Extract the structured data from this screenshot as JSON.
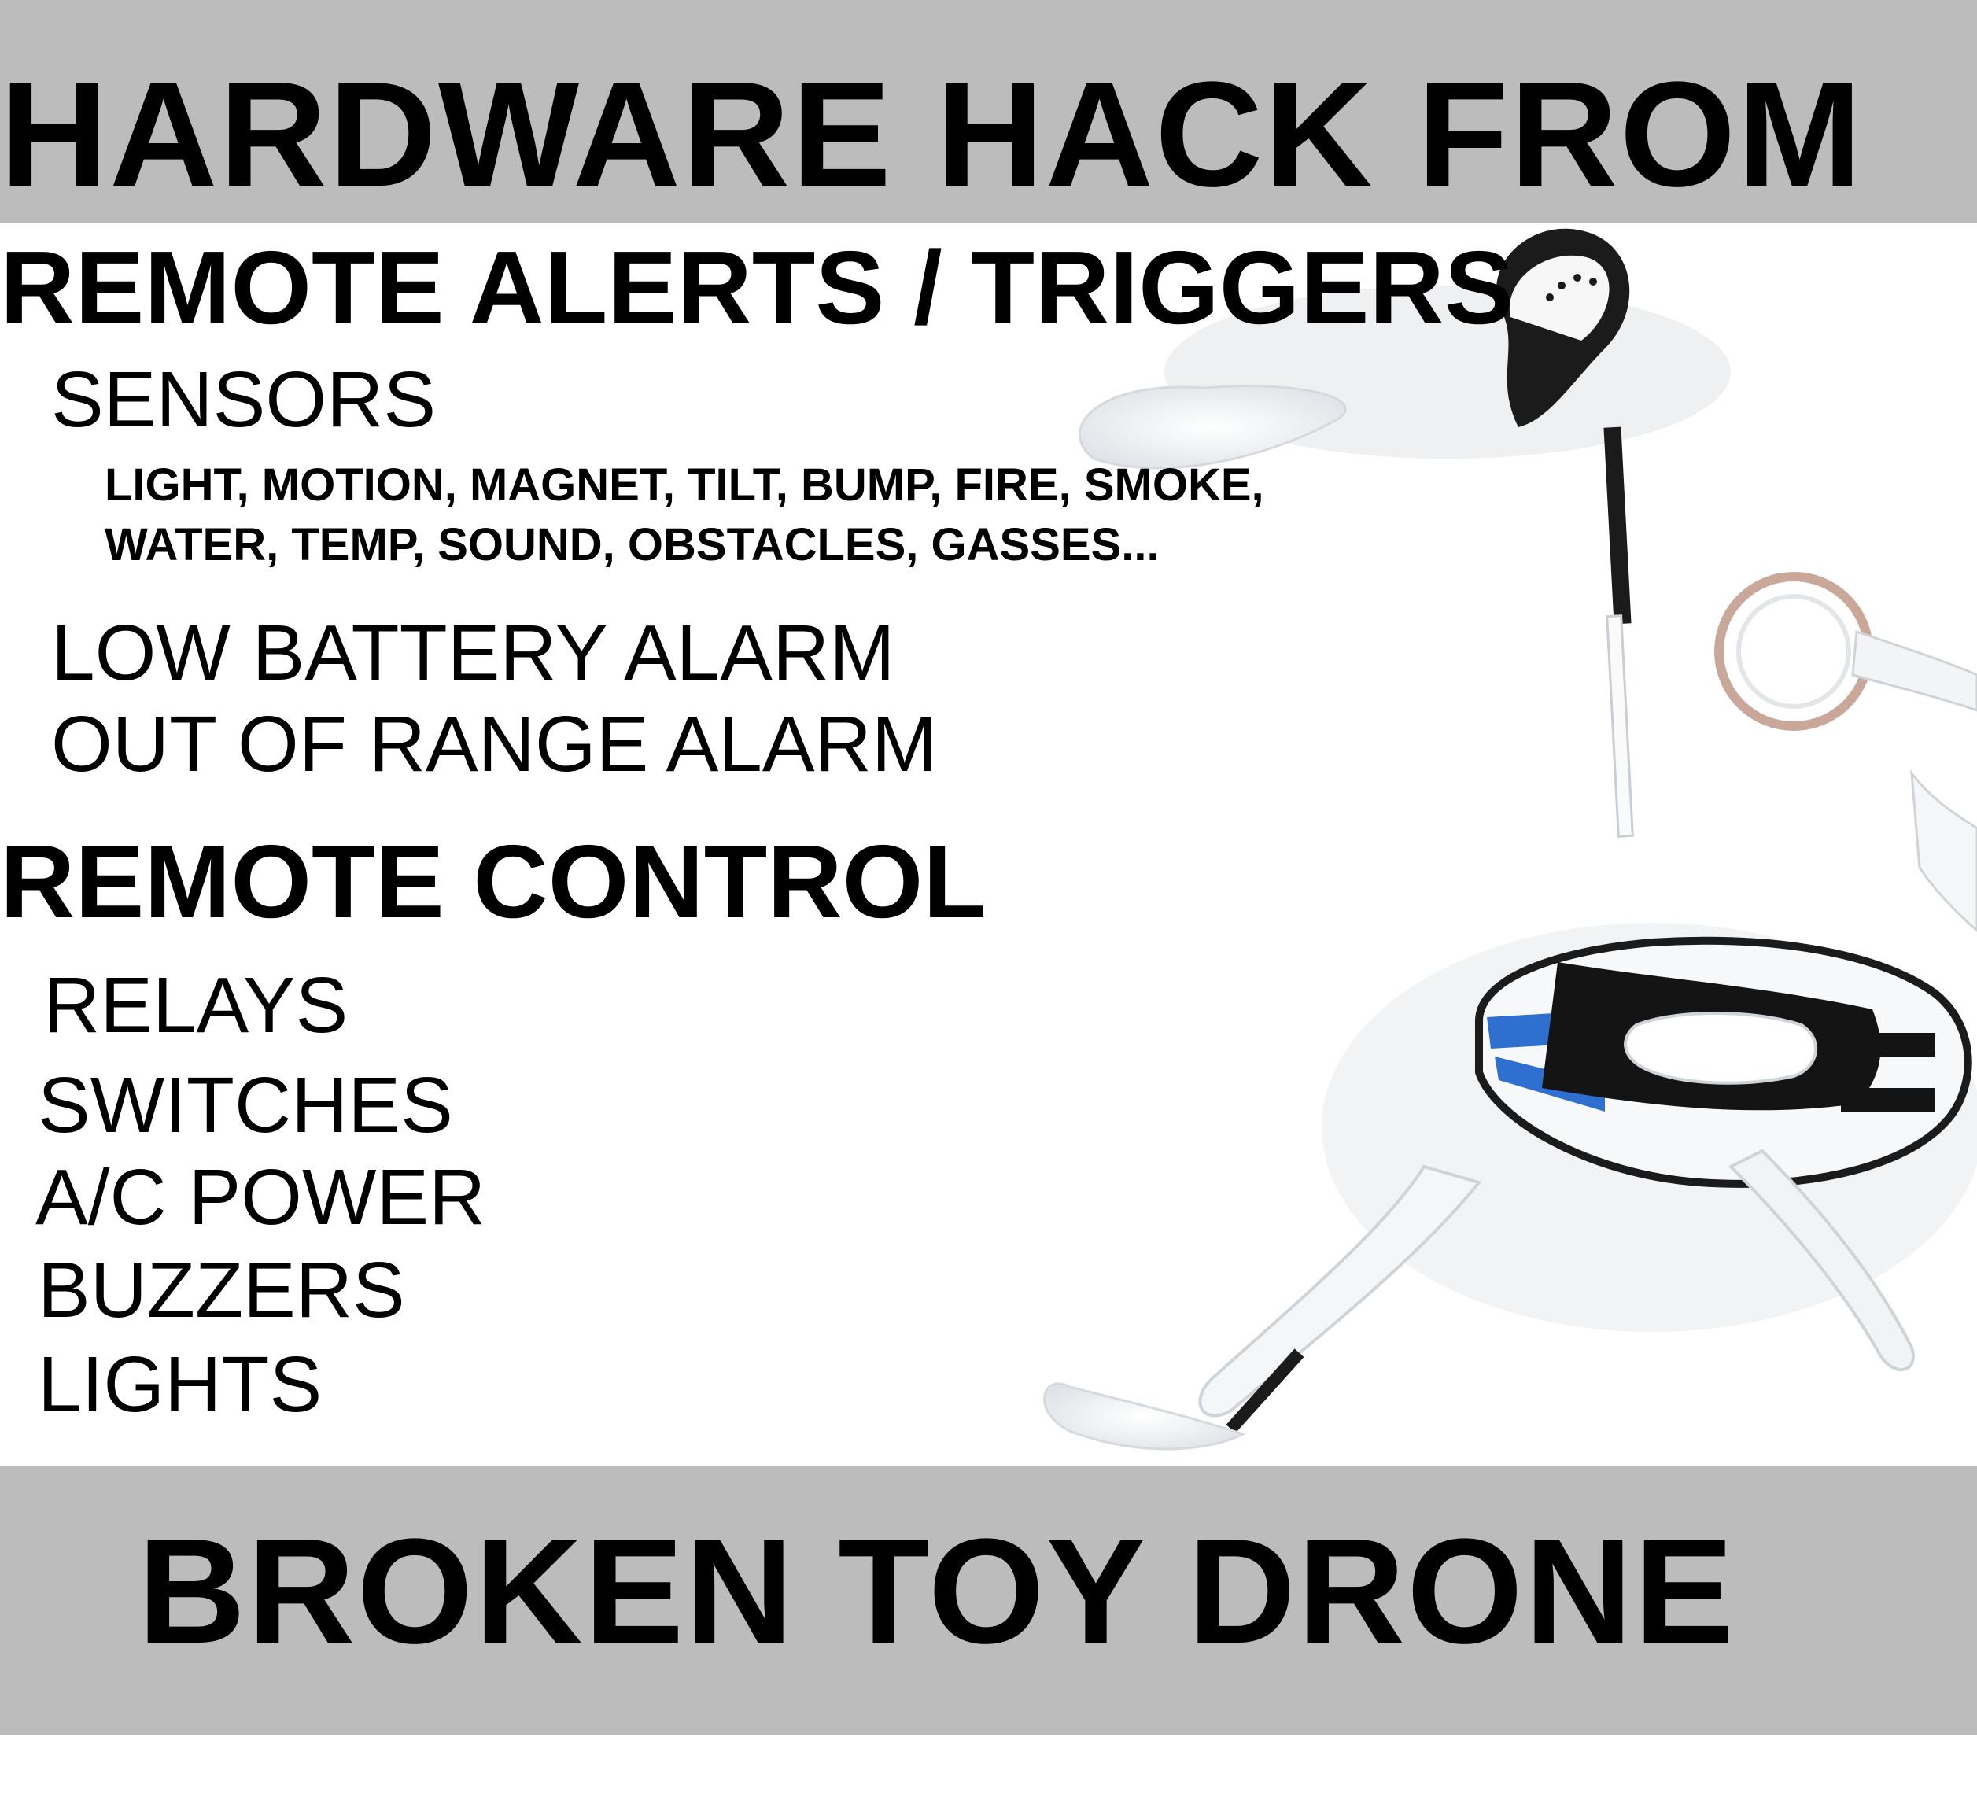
{
  "banners": {
    "top_title": "HARDWARE HACK FROM",
    "bottom_title": "BROKEN TOY DRONE",
    "banner_color": "#bcbcbc"
  },
  "alerts": {
    "heading": "REMOTE ALERTS / TRIGGERS",
    "sensors_label": "SENSORS",
    "sensor_types_line1": "LIGHT, MOTION, MAGNET, TILT, BUMP, FIRE, SMOKE,",
    "sensor_types_line2": "WATER, TEMP, SOUND, OBSTACLES, GASSES...",
    "low_battery": "LOW BATTERY ALARM",
    "out_of_range": "OUT OF RANGE ALARM"
  },
  "control": {
    "heading": "REMOTE CONTROL",
    "items": [
      "RELAYS",
      "SWITCHES",
      "A/C POWER",
      "BUZZERS",
      "LIGHTS"
    ]
  },
  "photo": {
    "subject": "broken-toy-drone",
    "body_color": "#f4f6f8",
    "accent_color": "#1a1a1a",
    "stripe_color": "#2f6fd0"
  }
}
